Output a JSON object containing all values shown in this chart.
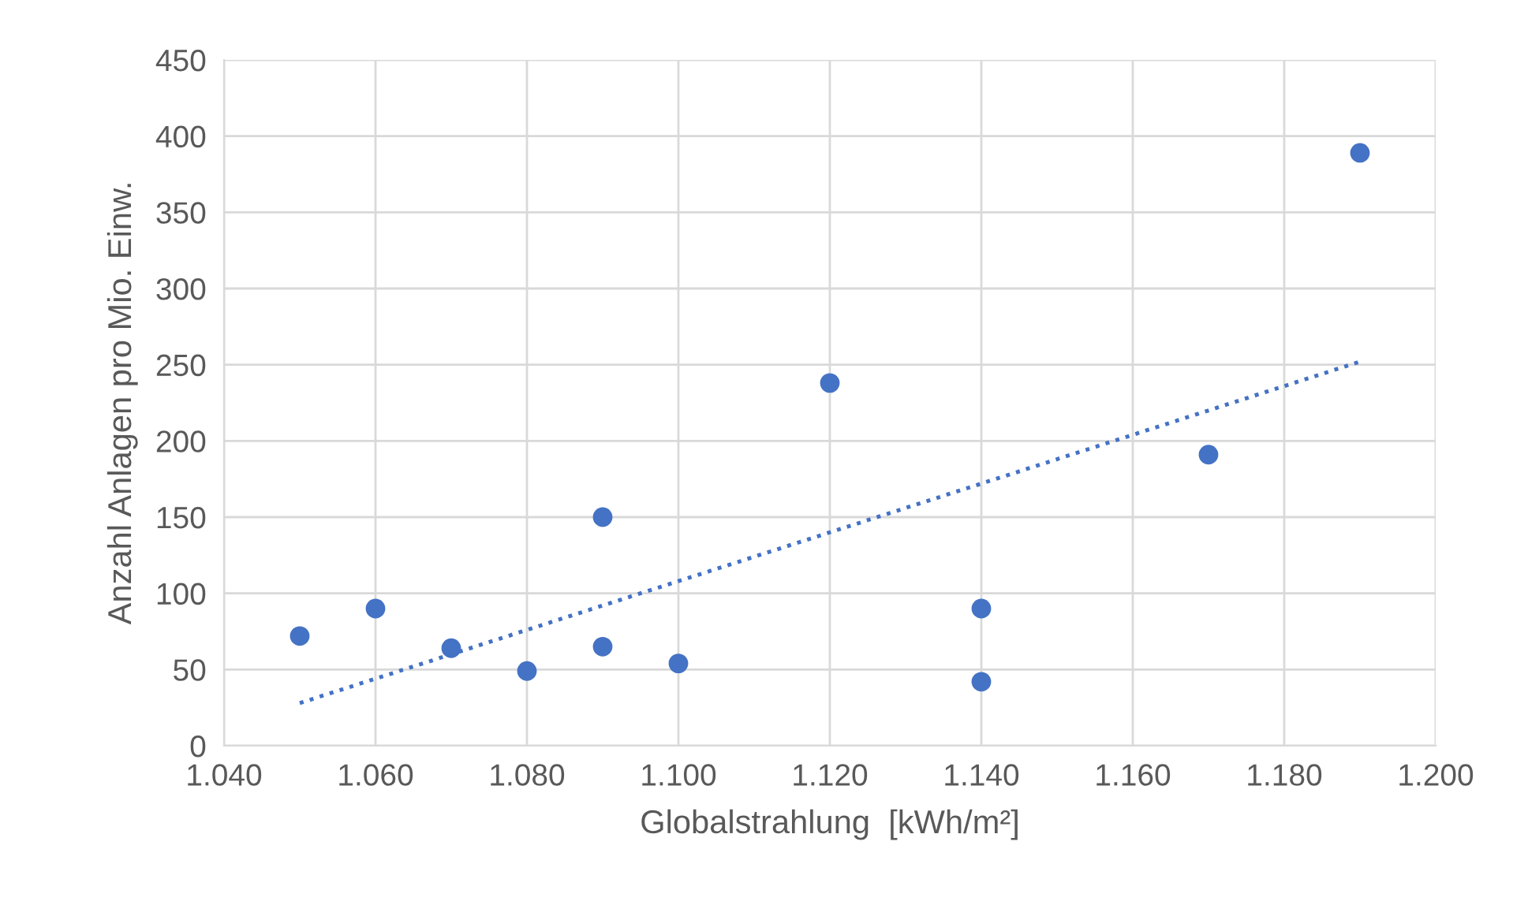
{
  "chart_data": {
    "type": "scatter",
    "xlabel": "Globalstrahlung  [kWh/m²]",
    "ylabel": "Anzahl Anlagen pro Mio. Einw.",
    "series": [
      {
        "color": "#4472c4",
        "marker": "circle",
        "x": [
          1050,
          1060,
          1070,
          1080,
          1090,
          1090,
          1100,
          1120,
          1140,
          1140,
          1170,
          1190
        ],
        "values": [
          72,
          90,
          64,
          49,
          150,
          65,
          54,
          238,
          90,
          42,
          191,
          389
        ]
      },
      {
        "type": "line",
        "color": "#4472c4",
        "line_style": "dotted",
        "marker": "none",
        "x": [
          1050,
          1190
        ],
        "values": [
          28,
          252
        ]
      }
    ],
    "xlim": [
      1040,
      1200
    ],
    "xticks": [
      {
        "value": 1040,
        "label": "1.040"
      },
      {
        "value": 1060,
        "label": "1.060"
      },
      {
        "value": 1080,
        "label": "1.080"
      },
      {
        "value": 1100,
        "label": "1.100"
      },
      {
        "value": 1120,
        "label": "1.120"
      },
      {
        "value": 1140,
        "label": "1.140"
      },
      {
        "value": 1160,
        "label": "1.160"
      },
      {
        "value": 1180,
        "label": "1.180"
      },
      {
        "value": 1200,
        "label": "1.200"
      }
    ],
    "ylim": [
      0,
      450
    ],
    "yticks": [
      0,
      50,
      100,
      150,
      200,
      250,
      300,
      350,
      400,
      450
    ],
    "grid": true,
    "legend": false
  }
}
